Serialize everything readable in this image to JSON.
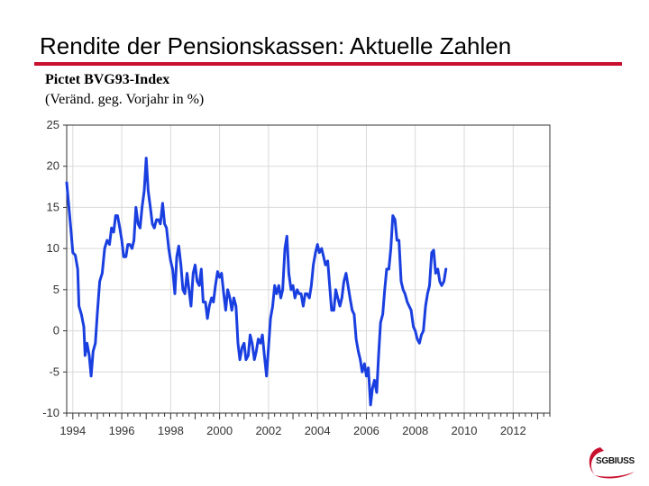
{
  "slide": {
    "title": "Rendite der Pensionskassen: Aktuelle Zahlen",
    "subtitle": "Pictet BVG93-Index",
    "subtitle2": "(Veränd. geg. Vorjahr in %)"
  },
  "logo": {
    "text": "SGBIUSS"
  },
  "colors": {
    "accent": "#c8102e",
    "series": "#1a3fe0",
    "grid": "#d9d9d9"
  },
  "chart_data": {
    "type": "line",
    "title": "Pictet BVG93-Index",
    "ylabel": "(Veränd. geg. Vorjahr in %)",
    "xlabel": "",
    "xlim": [
      1993.75,
      2013.5
    ],
    "ylim": [
      -10,
      25
    ],
    "yticks": [
      -10,
      -5,
      0,
      5,
      10,
      15,
      20,
      25
    ],
    "xticks": [
      1994,
      1996,
      1998,
      2000,
      2002,
      2004,
      2006,
      2008,
      2010,
      2012
    ],
    "grid": true,
    "series": [
      {
        "name": "Pictet BVG93-Index",
        "points": [
          [
            1993.75,
            18.0
          ],
          [
            1993.9,
            13.0
          ],
          [
            1994.0,
            9.5
          ],
          [
            1994.1,
            9.2
          ],
          [
            1994.2,
            7.5
          ],
          [
            1994.25,
            3.0
          ],
          [
            1994.35,
            2.0
          ],
          [
            1994.45,
            0.5
          ],
          [
            1994.5,
            -3.0
          ],
          [
            1994.58,
            -1.5
          ],
          [
            1994.67,
            -3.0
          ],
          [
            1994.75,
            -5.5
          ],
          [
            1994.83,
            -2.5
          ],
          [
            1994.92,
            -1.5
          ],
          [
            1995.0,
            2.0
          ],
          [
            1995.1,
            6.0
          ],
          [
            1995.2,
            7.0
          ],
          [
            1995.3,
            10.0
          ],
          [
            1995.4,
            11.0
          ],
          [
            1995.5,
            10.5
          ],
          [
            1995.58,
            12.5
          ],
          [
            1995.67,
            12.0
          ],
          [
            1995.75,
            14.0
          ],
          [
            1995.83,
            14.0
          ],
          [
            1995.92,
            12.5
          ],
          [
            1996.0,
            11.0
          ],
          [
            1996.08,
            9.0
          ],
          [
            1996.17,
            9.0
          ],
          [
            1996.25,
            10.5
          ],
          [
            1996.33,
            10.5
          ],
          [
            1996.42,
            10.0
          ],
          [
            1996.5,
            11.0
          ],
          [
            1996.58,
            15.0
          ],
          [
            1996.67,
            13.0
          ],
          [
            1996.75,
            12.5
          ],
          [
            1996.83,
            15.0
          ],
          [
            1996.92,
            17.0
          ],
          [
            1997.0,
            21.0
          ],
          [
            1997.08,
            17.0
          ],
          [
            1997.17,
            15.0
          ],
          [
            1997.25,
            13.0
          ],
          [
            1997.33,
            12.5
          ],
          [
            1997.42,
            13.5
          ],
          [
            1997.5,
            13.5
          ],
          [
            1997.58,
            13.0
          ],
          [
            1997.67,
            15.5
          ],
          [
            1997.75,
            13.0
          ],
          [
            1997.83,
            12.5
          ],
          [
            1997.92,
            10.0
          ],
          [
            1998.0,
            8.5
          ],
          [
            1998.08,
            7.5
          ],
          [
            1998.17,
            4.5
          ],
          [
            1998.25,
            9.0
          ],
          [
            1998.33,
            10.3
          ],
          [
            1998.42,
            8.0
          ],
          [
            1998.5,
            5.0
          ],
          [
            1998.58,
            4.5
          ],
          [
            1998.67,
            7.0
          ],
          [
            1998.75,
            5.0
          ],
          [
            1998.83,
            3.0
          ],
          [
            1998.92,
            7.0
          ],
          [
            1999.0,
            8.0
          ],
          [
            1999.08,
            6.0
          ],
          [
            1999.17,
            5.5
          ],
          [
            1999.25,
            7.5
          ],
          [
            1999.33,
            3.5
          ],
          [
            1999.42,
            3.5
          ],
          [
            1999.5,
            1.5
          ],
          [
            1999.58,
            3.0
          ],
          [
            1999.67,
            4.0
          ],
          [
            1999.75,
            3.5
          ],
          [
            1999.83,
            5.5
          ],
          [
            1999.92,
            7.2
          ],
          [
            2000.0,
            6.5
          ],
          [
            2000.08,
            7.0
          ],
          [
            2000.17,
            4.5
          ],
          [
            2000.25,
            2.5
          ],
          [
            2000.33,
            5.0
          ],
          [
            2000.42,
            4.0
          ],
          [
            2000.5,
            2.5
          ],
          [
            2000.58,
            4.0
          ],
          [
            2000.67,
            3.0
          ],
          [
            2000.75,
            -1.5
          ],
          [
            2000.83,
            -3.5
          ],
          [
            2000.92,
            -2.0
          ],
          [
            2001.0,
            -1.5
          ],
          [
            2001.08,
            -3.5
          ],
          [
            2001.17,
            -3.0
          ],
          [
            2001.25,
            -0.5
          ],
          [
            2001.33,
            -1.5
          ],
          [
            2001.42,
            -3.5
          ],
          [
            2001.5,
            -2.5
          ],
          [
            2001.58,
            -1.0
          ],
          [
            2001.67,
            -1.5
          ],
          [
            2001.75,
            -0.5
          ],
          [
            2001.83,
            -3.0
          ],
          [
            2001.92,
            -5.5
          ],
          [
            2002.0,
            -2.0
          ],
          [
            2002.08,
            1.5
          ],
          [
            2002.17,
            3.0
          ],
          [
            2002.25,
            5.5
          ],
          [
            2002.33,
            4.5
          ],
          [
            2002.42,
            5.5
          ],
          [
            2002.5,
            4.0
          ],
          [
            2002.58,
            5.0
          ],
          [
            2002.67,
            10.0
          ],
          [
            2002.75,
            11.5
          ],
          [
            2002.83,
            7.0
          ],
          [
            2002.92,
            5.0
          ],
          [
            2003.0,
            5.5
          ],
          [
            2003.08,
            4.0
          ],
          [
            2003.17,
            5.0
          ],
          [
            2003.25,
            4.5
          ],
          [
            2003.33,
            4.5
          ],
          [
            2003.42,
            3.0
          ],
          [
            2003.5,
            4.5
          ],
          [
            2003.58,
            4.5
          ],
          [
            2003.67,
            4.0
          ],
          [
            2003.75,
            5.5
          ],
          [
            2003.83,
            8.0
          ],
          [
            2003.92,
            9.5
          ],
          [
            2004.0,
            10.5
          ],
          [
            2004.08,
            9.5
          ],
          [
            2004.17,
            10.0
          ],
          [
            2004.25,
            9.0
          ],
          [
            2004.33,
            8.0
          ],
          [
            2004.42,
            8.5
          ],
          [
            2004.5,
            5.5
          ],
          [
            2004.58,
            2.5
          ],
          [
            2004.67,
            2.5
          ],
          [
            2004.75,
            5.0
          ],
          [
            2004.83,
            4.0
          ],
          [
            2004.92,
            3.0
          ],
          [
            2005.0,
            4.0
          ],
          [
            2005.08,
            6.0
          ],
          [
            2005.17,
            7.0
          ],
          [
            2005.25,
            5.5
          ],
          [
            2005.33,
            4.0
          ],
          [
            2005.42,
            2.5
          ],
          [
            2005.5,
            2.0
          ],
          [
            2005.58,
            -1.0
          ],
          [
            2005.67,
            -2.5
          ],
          [
            2005.75,
            -3.5
          ],
          [
            2005.83,
            -5.0
          ],
          [
            2005.92,
            -4.0
          ],
          [
            2006.0,
            -5.5
          ],
          [
            2006.08,
            -4.5
          ],
          [
            2006.17,
            -9.0
          ],
          [
            2006.25,
            -7.0
          ],
          [
            2006.33,
            -6.0
          ],
          [
            2006.42,
            -7.5
          ],
          [
            2006.5,
            -3.0
          ],
          [
            2006.58,
            1.0
          ],
          [
            2006.67,
            2.0
          ],
          [
            2006.75,
            5.0
          ],
          [
            2006.83,
            7.5
          ],
          [
            2006.92,
            7.5
          ],
          [
            2007.0,
            10.0
          ],
          [
            2007.08,
            14.0
          ],
          [
            2007.17,
            13.5
          ],
          [
            2007.25,
            11.0
          ],
          [
            2007.33,
            11.0
          ],
          [
            2007.42,
            6.0
          ],
          [
            2007.5,
            5.0
          ],
          [
            2007.58,
            4.5
          ],
          [
            2007.67,
            3.5
          ],
          [
            2007.75,
            3.0
          ],
          [
            2007.83,
            2.5
          ],
          [
            2007.92,
            0.5
          ],
          [
            2008.0,
            0.0
          ],
          [
            2008.08,
            -1.0
          ],
          [
            2008.17,
            -1.5
          ],
          [
            2008.25,
            -0.5
          ],
          [
            2008.33,
            0.0
          ],
          [
            2008.42,
            3.0
          ],
          [
            2008.5,
            4.5
          ],
          [
            2008.58,
            5.5
          ],
          [
            2008.67,
            9.5
          ],
          [
            2008.75,
            9.8
          ],
          [
            2008.83,
            7.0
          ],
          [
            2008.92,
            7.5
          ],
          [
            2009.0,
            6.0
          ],
          [
            2009.08,
            5.5
          ],
          [
            2009.17,
            6.0
          ],
          [
            2009.25,
            7.5
          ]
        ]
      }
    ]
  }
}
